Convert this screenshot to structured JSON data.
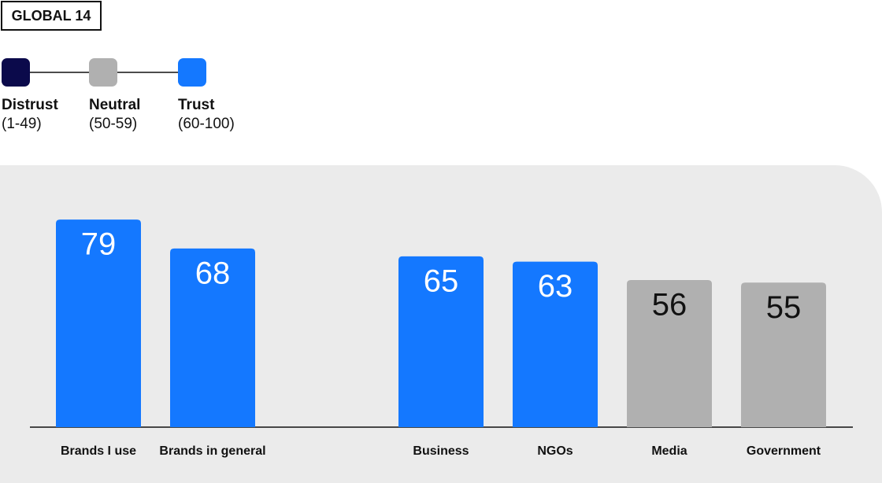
{
  "chart_data": {
    "type": "bar",
    "title": "GLOBAL 14",
    "legend": [
      {
        "name": "Distrust",
        "range": "(1-49)",
        "color": "#0b0a4b"
      },
      {
        "name": "Neutral",
        "range": "(50-59)",
        "color": "#b0b0b0"
      },
      {
        "name": "Trust",
        "range": "(60-100)",
        "color": "#1478ff"
      }
    ],
    "categories": [
      "Brands I use",
      "Brands in general",
      null,
      "Business",
      "NGOs",
      "Media",
      "Government"
    ],
    "values": [
      79,
      68,
      null,
      65,
      63,
      56,
      55
    ],
    "colors": [
      "#1478ff",
      "#1478ff",
      null,
      "#1478ff",
      "#1478ff",
      "#b0b0b0",
      "#b0b0b0"
    ],
    "label_colors": [
      "#ffffff",
      "#ffffff",
      null,
      "#ffffff",
      "#ffffff",
      "#111111",
      "#111111"
    ]
  }
}
